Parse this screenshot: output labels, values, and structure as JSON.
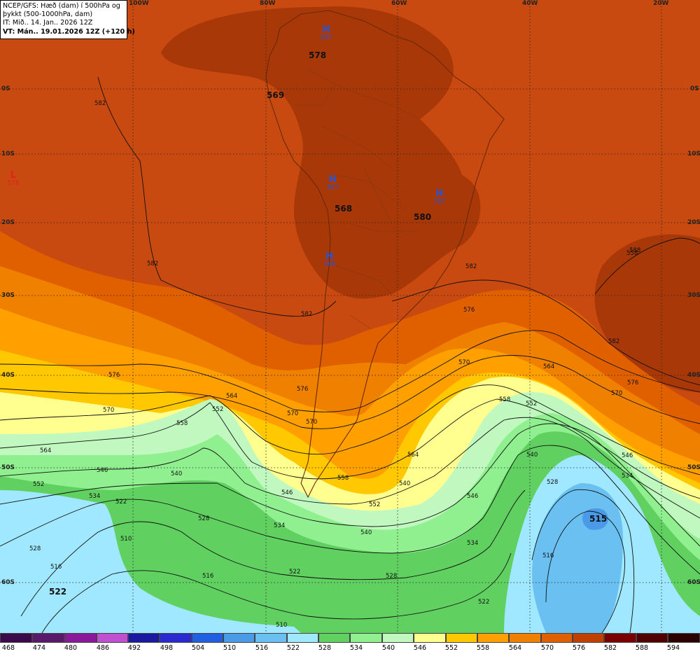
{
  "header": {
    "line1": "NCEP/GFS: Hæð (dam) í 500hPa og",
    "line2": "þykkt (500-1000hPa, dam)",
    "line3": "IT: Mið.. 14. Jan.. 2026 12Z",
    "line4": "VT: Mán.. 19.01.2026 12Z (+120 h)"
  },
  "lon_labels": [
    "100W",
    "80W",
    "60W",
    "40W",
    "20W"
  ],
  "lat_labels": [
    "0S",
    "10S",
    "20S",
    "30S",
    "40S",
    "50S",
    "60S"
  ],
  "pressure_centers": [
    {
      "type": "H",
      "value": "587",
      "color": "#2255dd"
    },
    {
      "type": "H",
      "value": "587",
      "color": "#2255dd"
    },
    {
      "type": "H",
      "value": "587",
      "color": "#2255dd"
    },
    {
      "type": "H",
      "value": "588",
      "color": "#2255dd"
    },
    {
      "type": "L",
      "value": "578",
      "color": "#e02020"
    }
  ],
  "thickness_labels": [
    "578",
    "569",
    "568",
    "580",
    "522",
    "515"
  ],
  "contour_labels": [
    "582",
    "582",
    "582",
    "582",
    "576",
    "576",
    "576",
    "570",
    "570",
    "570",
    "570",
    "564",
    "564",
    "564",
    "564",
    "558",
    "558",
    "558",
    "558",
    "552",
    "552",
    "552",
    "552",
    "546",
    "546",
    "546",
    "546",
    "540",
    "540",
    "540",
    "540",
    "534",
    "534",
    "534",
    "534",
    "528",
    "528",
    "528",
    "528",
    "522",
    "522",
    "522",
    "516",
    "516",
    "516",
    "510",
    "510",
    "582",
    "588",
    "576",
    "570"
  ],
  "legend": {
    "colors": [
      "#3a0a4a",
      "#5a1a6a",
      "#8a1a9a",
      "#c050d0",
      "#1a1aa0",
      "#2a2ad0",
      "#2060e0",
      "#4a9ae8",
      "#6ac0f0",
      "#a0e8ff",
      "#60d060",
      "#90f090",
      "#c0f8c0",
      "#ffff90",
      "#ffc800",
      "#ffa000",
      "#f08000",
      "#e06000",
      "#c04000",
      "#a02800",
      "#7a0000",
      "#500000"
    ],
    "values": [
      "468",
      "474",
      "480",
      "486",
      "492",
      "498",
      "504",
      "510",
      "516",
      "522",
      "528",
      "534",
      "540",
      "546",
      "552",
      "558",
      "564",
      "570",
      "576",
      "582",
      "588",
      "594"
    ]
  }
}
